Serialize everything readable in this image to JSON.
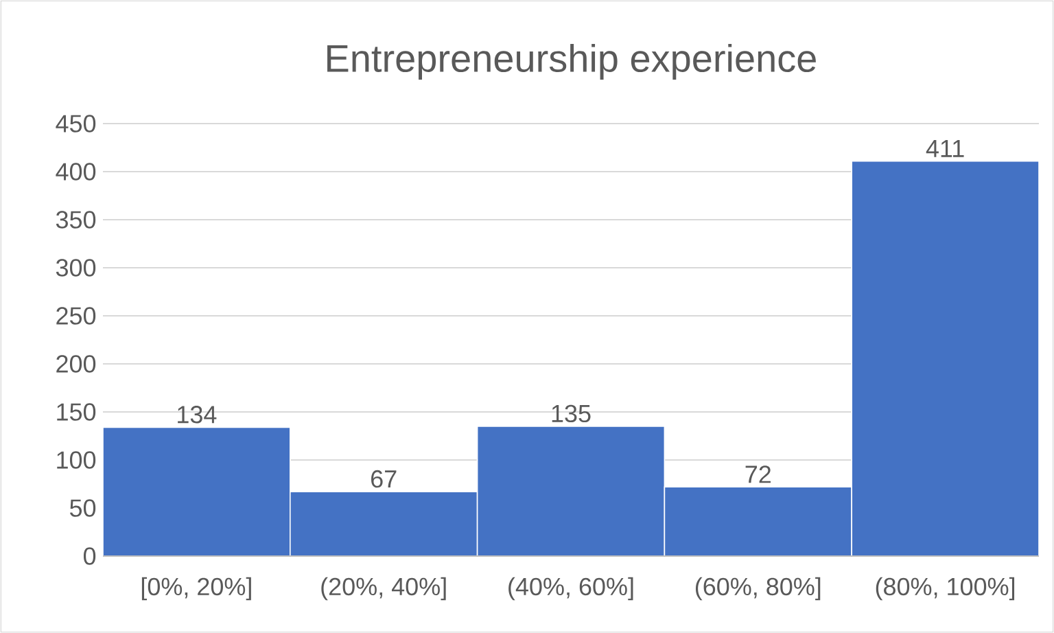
{
  "chart_data": {
    "type": "bar",
    "title": "Entrepreneurship experience",
    "categories": [
      "[0%, 20%]",
      "(20%, 40%]",
      "(40%, 60%]",
      "(60%, 80%]",
      "(80%, 100%]"
    ],
    "values": [
      134,
      67,
      135,
      72,
      411
    ],
    "color": "#4472c4",
    "ylim": [
      0,
      450
    ],
    "yticks": [
      0,
      50,
      100,
      150,
      200,
      250,
      300,
      350,
      400,
      450
    ],
    "grid": "y",
    "data_labels": true
  }
}
